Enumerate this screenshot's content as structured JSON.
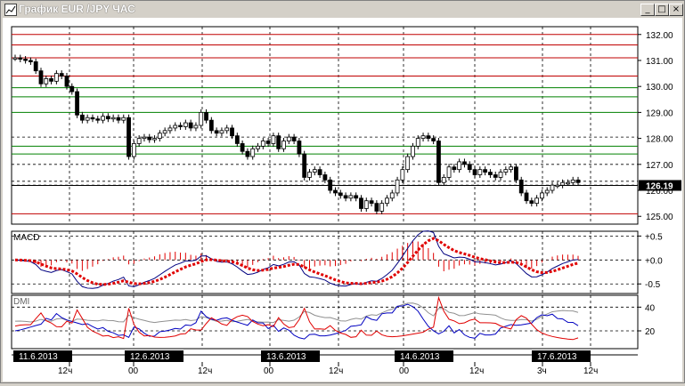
{
  "window": {
    "title": "График EUR /JPY  ЧАС",
    "buttons": {
      "minimize": "_",
      "maximize": "□",
      "close": "×"
    }
  },
  "price_panel": {
    "last_price_label": "126.19"
  },
  "macd_panel": {
    "label": "MACD"
  },
  "dmi_panel": {
    "label": "DMI"
  },
  "colors": {
    "background": "#ffffff",
    "red_level": "#c00000",
    "green_level": "#008000",
    "macd_line": "#000080",
    "macd_signal": "#e00000",
    "dmi_plus": "#0000c0",
    "dmi_minus": "#e00000",
    "adx": "#909090",
    "date_label_bg": "#000000"
  },
  "chart_data": [
    {
      "type": "candlestick",
      "title": "EUR /JPY ЧАС",
      "ylim": [
        124.7,
        132.3
      ],
      "y_ticks": [
        "132.00",
        "131.00",
        "130.00",
        "129.00",
        "128.00",
        "127.00",
        "126.00",
        "125.00"
      ],
      "last_price": 126.19,
      "red_levels": [
        132.0,
        131.6,
        131.1,
        130.4,
        125.1
      ],
      "green_levels": [
        129.95,
        129.6,
        129.0,
        127.7,
        127.4
      ],
      "dashed_levels": [
        128.05,
        127.0,
        126.35,
        126.2
      ],
      "close": [
        131.1,
        131.05,
        131.0,
        130.95,
        130.6,
        130.1,
        130.3,
        130.2,
        130.5,
        130.4,
        130.0,
        129.8,
        128.9,
        128.7,
        128.8,
        128.75,
        128.7,
        128.85,
        128.75,
        128.8,
        128.7,
        128.8,
        127.3,
        127.8,
        128.0,
        128.05,
        127.95,
        128.0,
        128.2,
        128.3,
        128.4,
        128.5,
        128.45,
        128.6,
        128.4,
        128.5,
        129.0,
        128.7,
        128.3,
        128.2,
        128.3,
        128.4,
        128.1,
        127.8,
        127.5,
        127.3,
        127.6,
        127.7,
        127.9,
        127.8,
        128.1,
        127.6,
        127.9,
        128.05,
        127.9,
        127.4,
        126.5,
        126.7,
        126.8,
        126.6,
        126.4,
        126.0,
        125.9,
        125.8,
        125.7,
        125.8,
        125.7,
        125.3,
        125.6,
        125.5,
        125.2,
        125.5,
        125.7,
        125.9,
        126.4,
        126.8,
        127.3,
        127.7,
        128.0,
        128.1,
        128.0,
        127.9,
        126.3,
        126.5,
        126.9,
        126.8,
        127.1,
        127.0,
        126.8,
        126.6,
        126.8,
        126.7,
        126.6,
        126.5,
        126.7,
        126.8,
        126.9,
        126.4,
        125.9,
        125.6,
        125.5,
        125.7,
        125.9,
        126.0,
        126.2,
        126.2,
        126.3,
        126.3,
        126.4,
        126.3
      ],
      "x_tick_labels": [
        "12ч",
        "00",
        "12ч",
        "00",
        "12ч",
        "00",
        "12ч",
        "3ч",
        "12ч"
      ],
      "date_labels": [
        "11.6.2013",
        "12.6.2013",
        "13.6.2013",
        "14.6.2013",
        "17.6.2013"
      ]
    },
    {
      "type": "line",
      "name": "MACD",
      "y_ticks": [
        "+0.5",
        "+0.0",
        "-0.5"
      ],
      "ylim": [
        -0.7,
        0.6
      ]
    },
    {
      "type": "line",
      "name": "DMI",
      "y_ticks": [
        "40",
        "20"
      ],
      "ylim": [
        5,
        50
      ]
    }
  ]
}
